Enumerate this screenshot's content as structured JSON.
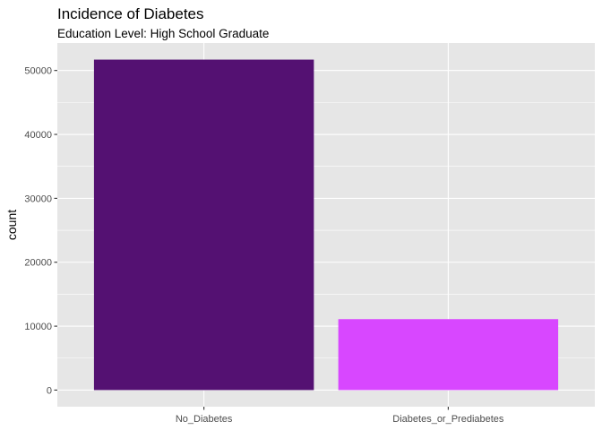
{
  "chart_data": {
    "type": "bar",
    "title": "Incidence of Diabetes",
    "subtitle": "Education Level: High School Graduate",
    "xlabel": "",
    "ylabel": "count",
    "categories": [
      "No_Diabetes",
      "Diabetes_or_Prediabetes"
    ],
    "values": [
      51700,
      11100
    ],
    "colors": [
      "#541172",
      "#d847ff"
    ],
    "ylim": [
      -2600,
      54300
    ],
    "yticks": [
      0,
      10000,
      20000,
      30000,
      40000,
      50000
    ],
    "ytick_labels": [
      "0",
      "10000",
      "20000",
      "30000",
      "40000",
      "50000"
    ],
    "grid": true,
    "legend": "none",
    "panel_background": "#e6e6e6",
    "grid_color": "#ffffff",
    "tick_color": "#4d4d4d"
  }
}
